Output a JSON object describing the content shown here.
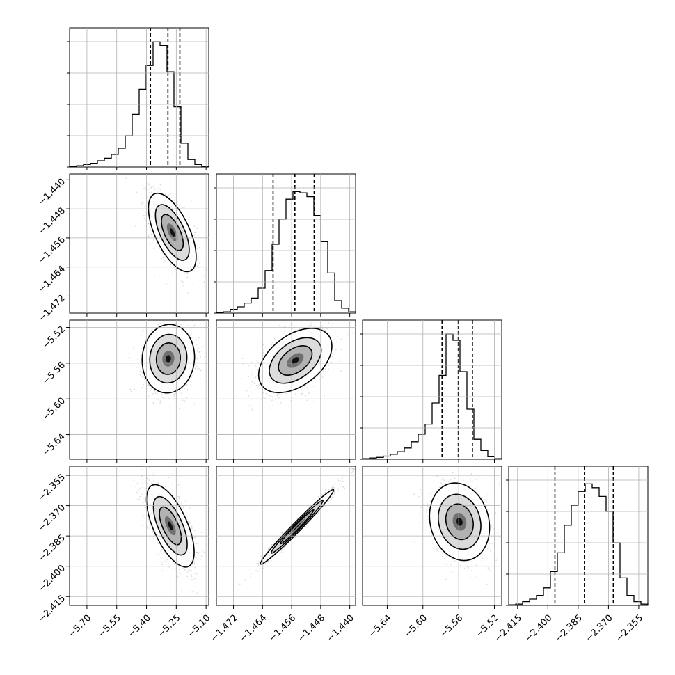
{
  "chart_data": {
    "type": "corner",
    "grid": true,
    "parameters": [
      {
        "ticks": [
          -5.7,
          -5.55,
          -5.4,
          -5.25,
          -5.1
        ],
        "labels": [
          "−5.70",
          "−5.55",
          "−5.40",
          "−5.25",
          "−5.10"
        ],
        "range": [
          -5.7873,
          -5.0865
        ],
        "quantiles": [
          -5.38,
          -5.292,
          -5.232
        ]
      },
      {
        "ticks": [
          -1.472,
          -1.464,
          -1.456,
          -1.448,
          -1.44
        ],
        "labels": [
          "−1.472",
          "−1.464",
          "−1.456",
          "−1.448",
          "−1.440"
        ],
        "range": [
          -1.4767,
          -1.4384
        ],
        "quantiles": [
          -1.4611,
          -1.4551,
          -1.4498
        ]
      },
      {
        "ticks": [
          -5.64,
          -5.6,
          -5.56,
          -5.52
        ],
        "labels": [
          "−5.64",
          "−5.60",
          "−5.56",
          "−5.52"
        ],
        "range": [
          -5.6676,
          -5.5118
        ],
        "quantiles": [
          -5.5786,
          -5.5604,
          -5.5446
        ]
      },
      {
        "ticks": [
          -2.415,
          -2.4,
          -2.385,
          -2.37,
          -2.355
        ],
        "labels": [
          "−2.415",
          "−2.400",
          "−2.385",
          "−2.370",
          "−2.355"
        ],
        "range": [
          -2.4194,
          -2.3505
        ],
        "quantiles": [
          -2.3965,
          -2.3819,
          -2.3676
        ]
      }
    ],
    "histograms": [
      [
        0.005,
        0.01,
        0.02,
        0.03,
        0.05,
        0.07,
        0.1,
        0.15,
        0.25,
        0.42,
        0.62,
        0.81,
        1.0,
        0.97,
        0.76,
        0.48,
        0.19,
        0.06,
        0.02,
        0.005
      ],
      [
        0.005,
        0.01,
        0.03,
        0.05,
        0.08,
        0.12,
        0.2,
        0.34,
        0.55,
        0.75,
        0.91,
        0.97,
        0.96,
        0.93,
        0.78,
        0.57,
        0.32,
        0.1,
        0.04,
        0.01
      ],
      [
        0.005,
        0.01,
        0.015,
        0.025,
        0.04,
        0.06,
        0.09,
        0.14,
        0.2,
        0.28,
        0.45,
        0.67,
        1.0,
        0.95,
        0.7,
        0.4,
        0.16,
        0.07,
        0.02,
        0.005
      ],
      [
        0.005,
        0.01,
        0.03,
        0.05,
        0.08,
        0.14,
        0.27,
        0.42,
        0.64,
        0.8,
        0.91,
        0.97,
        0.94,
        0.87,
        0.75,
        0.5,
        0.22,
        0.08,
        0.03,
        0.01
      ]
    ],
    "pairs": [
      {
        "row": 1,
        "col": 0,
        "center": [
          -5.27,
          -1.4545
        ],
        "sd": [
          0.05,
          0.0045
        ],
        "corr": -0.62
      },
      {
        "row": 2,
        "col": 0,
        "center": [
          -5.29,
          -5.555
        ],
        "sd": [
          0.055,
          0.016
        ],
        "corr": 0.05
      },
      {
        "row": 2,
        "col": 1,
        "center": [
          -1.455,
          -5.557
        ],
        "sd": [
          0.0042,
          0.015
        ],
        "corr": 0.45
      },
      {
        "row": 3,
        "col": 0,
        "center": [
          -5.28,
          -2.38
        ],
        "sd": [
          0.05,
          0.0085
        ],
        "corr": -0.64
      },
      {
        "row": 3,
        "col": 1,
        "center": [
          -1.4545,
          -2.3805
        ],
        "sd": [
          0.0042,
          0.0077
        ],
        "corr": 0.985
      },
      {
        "row": 3,
        "col": 2,
        "center": [
          -5.559,
          -2.378
        ],
        "sd": [
          0.014,
          0.008
        ],
        "corr": -0.15
      }
    ]
  }
}
